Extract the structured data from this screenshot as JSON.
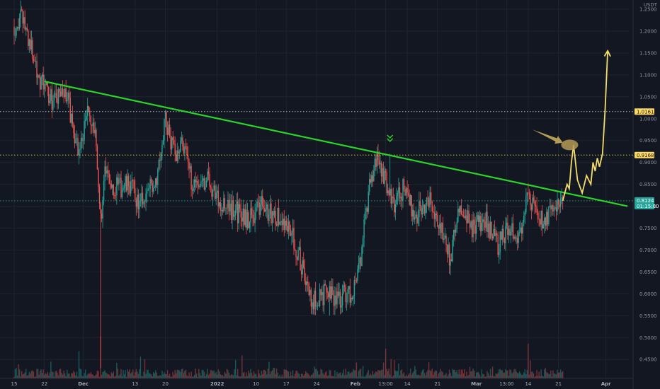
{
  "chart_data": {
    "type": "candlestick",
    "currency": "USDT",
    "y_ticks": [
      "1.2500",
      "1.2000",
      "1.1500",
      "1.1000",
      "1.0500",
      "1.0000",
      "0.9500",
      "0.9000",
      "0.8500",
      "0.8000",
      "0.7500",
      "0.7000",
      "0.6500",
      "0.6000",
      "0.5500",
      "0.5000",
      "0.4500"
    ],
    "ylim": [
      0.425,
      1.265
    ],
    "x_ticks": [
      "15",
      "22",
      "Dec",
      "13",
      "20",
      "2022",
      "10",
      "17",
      "24",
      "Feb",
      "13:00",
      "14",
      "21",
      "Mar",
      "13:00",
      "14",
      "21",
      "Apr"
    ],
    "x_tick_days": [
      0,
      7,
      16,
      28,
      35,
      47,
      56,
      63,
      70,
      79,
      86,
      91,
      98,
      107,
      114,
      119,
      126,
      137
    ],
    "x_bold": [
      "Dec",
      "2022",
      "Feb",
      "Mar",
      "Apr"
    ],
    "price_path": [
      [
        0,
        1.21
      ],
      [
        2,
        1.23
      ],
      [
        4,
        1.16
      ],
      [
        6,
        1.09
      ],
      [
        9,
        1.04
      ],
      [
        12,
        1.06
      ],
      [
        15,
        0.92
      ],
      [
        17,
        1.02
      ],
      [
        19,
        0.94
      ],
      [
        20,
        0.77
      ],
      [
        21,
        0.87
      ],
      [
        24,
        0.84
      ],
      [
        27,
        0.85
      ],
      [
        29,
        0.8
      ],
      [
        33,
        0.87
      ],
      [
        35,
        1.0
      ],
      [
        37,
        0.92
      ],
      [
        39,
        0.95
      ],
      [
        41,
        0.86
      ],
      [
        45,
        0.86
      ],
      [
        48,
        0.8
      ],
      [
        51,
        0.79
      ],
      [
        54,
        0.77
      ],
      [
        57,
        0.8
      ],
      [
        60,
        0.78
      ],
      [
        64,
        0.75
      ],
      [
        67,
        0.65
      ],
      [
        69,
        0.58
      ],
      [
        71,
        0.6
      ],
      [
        74,
        0.59
      ],
      [
        78,
        0.6
      ],
      [
        80,
        0.66
      ],
      [
        82,
        0.83
      ],
      [
        84,
        0.91
      ],
      [
        86,
        0.86
      ],
      [
        88,
        0.8
      ],
      [
        90,
        0.84
      ],
      [
        93,
        0.78
      ],
      [
        96,
        0.82
      ],
      [
        99,
        0.75
      ],
      [
        101,
        0.68
      ],
      [
        103,
        0.8
      ],
      [
        106,
        0.75
      ],
      [
        109,
        0.77
      ],
      [
        112,
        0.71
      ],
      [
        115,
        0.76
      ],
      [
        117,
        0.72
      ],
      [
        119,
        0.84
      ],
      [
        121,
        0.77
      ],
      [
        123,
        0.76
      ],
      [
        125,
        0.8
      ],
      [
        127,
        0.8124
      ]
    ],
    "wick_spikes": [
      {
        "day": 20,
        "low": 0.43
      },
      {
        "day": 35,
        "high": 1.02
      },
      {
        "day": 73,
        "low": 0.55
      },
      {
        "day": 87,
        "high": 0.92
      }
    ],
    "volume_spikes": [
      {
        "day": 20,
        "level": 0.85
      },
      {
        "day": 15,
        "level": 0.55
      },
      {
        "day": 86,
        "level": 0.6
      },
      {
        "day": 119,
        "level": 0.7
      }
    ],
    "trendline": {
      "color": "#2bd42b",
      "from": [
        7,
        1.085
      ],
      "to": [
        142,
        0.8
      ]
    },
    "hlines": [
      {
        "price": 1.0161,
        "label": "1.0161",
        "style": "dotted",
        "color": "#c9ccd4",
        "tag_bg": "#ffd966",
        "tag_text": "#131722"
      },
      {
        "price": 0.9168,
        "label": "0.9168",
        "style": "dotted",
        "color": "#f5d442",
        "tag_bg": "#ffd966",
        "tag_text": "#131722"
      },
      {
        "price": 0.8124,
        "label": "0.8124",
        "sublabel": "01:15:00",
        "style": "dotted",
        "color": "#26a69a",
        "tag_bg": "#26a69a",
        "tag_text": "#ffffff"
      }
    ],
    "projection": {
      "color": "#f2dc6b",
      "points": [
        [
          127,
          0.8124
        ],
        [
          128,
          0.85
        ],
        [
          128.5,
          0.84
        ],
        [
          129,
          0.9
        ],
        [
          129.5,
          0.94
        ],
        [
          130.4,
          0.86
        ],
        [
          131.5,
          0.83
        ],
        [
          132.5,
          0.87
        ],
        [
          133.5,
          0.85
        ],
        [
          134,
          0.9
        ],
        [
          134.5,
          0.88
        ],
        [
          135,
          0.91
        ],
        [
          135.5,
          0.89
        ],
        [
          136.2,
          0.92
        ],
        [
          136.8,
          1.02
        ],
        [
          137.4,
          1.155
        ]
      ]
    },
    "arrow_pointer": {
      "color": "#c8ac5c",
      "from": [
        120,
        0.975
      ],
      "to": [
        127,
        0.945
      ]
    },
    "ellipse_marker": {
      "center": [
        128.6,
        0.94
      ],
      "color": "#b49b55"
    },
    "down_chevrons": {
      "day": 87,
      "price": 0.94,
      "color": "#2bd42b"
    },
    "colors": {
      "background": "#131722",
      "up": "#26a69a",
      "down": "#ef5350",
      "grid": "#1f2330",
      "axis_text": "#8f94a1"
    }
  }
}
